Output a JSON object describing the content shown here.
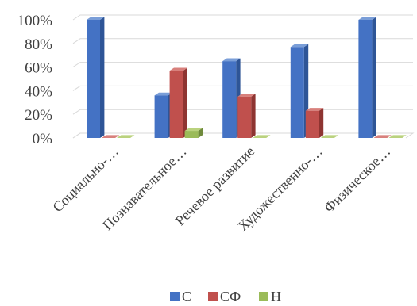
{
  "chart_data": {
    "type": "bar",
    "categories": [
      "Социально-…",
      "Познавательное…",
      "Речевое развитие",
      "Художественно-…",
      "Физическое…"
    ],
    "series": [
      {
        "name": "С",
        "values": [
          100,
          36,
          65,
          77,
          100
        ]
      },
      {
        "name": "СФ",
        "values": [
          0,
          57,
          35,
          23,
          0
        ]
      },
      {
        "name": "Н",
        "values": [
          0,
          6,
          0,
          0,
          0
        ]
      }
    ],
    "ylim": [
      0,
      100
    ],
    "yticks": [
      "0%",
      "20%",
      "40%",
      "60%",
      "80%",
      "100%"
    ],
    "ytick_values": [
      0,
      20,
      40,
      60,
      80,
      100
    ],
    "grid": true,
    "legend": "bottom",
    "three_d": true,
    "colors": [
      "#4472C4",
      "#C0504D",
      "#9BBB59"
    ],
    "shade_side": [
      "#2E5597",
      "#8E3431",
      "#6F8A3C"
    ],
    "shade_top": [
      "#7A9ED8",
      "#D8807C",
      "#BAD27E"
    ]
  }
}
